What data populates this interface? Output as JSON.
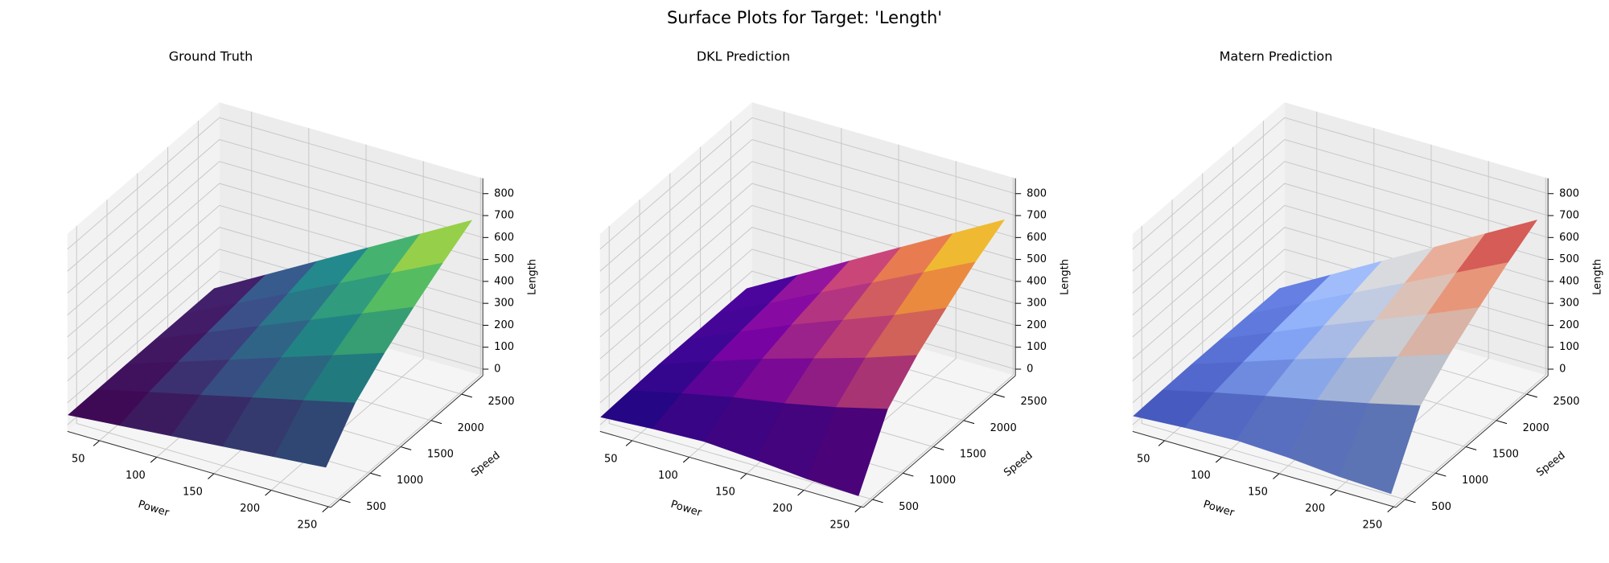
{
  "title": "Surface Plots for Target: 'Length'",
  "chart_data": [
    {
      "type": "surface",
      "title": "Ground Truth",
      "x_label": "Power",
      "y_label": "Speed",
      "z_label": "Length",
      "colormap": "viridis",
      "x": [
        20,
        65,
        110,
        155,
        200,
        245
      ],
      "y": [
        400,
        880,
        1360,
        1840,
        2320,
        2800
      ],
      "z": [
        [
          30,
          50,
          70,
          90,
          110,
          130
        ],
        [
          30,
          86,
          141,
          197,
          252,
          308
        ],
        [
          30,
          108,
          186,
          264,
          342,
          420
        ],
        [
          30,
          127,
          224,
          320,
          417,
          514
        ],
        [
          30,
          144,
          258,
          372,
          486,
          600
        ],
        [
          30,
          160,
          290,
          420,
          550,
          680
        ]
      ],
      "xlim": [
        22,
        252
      ],
      "ylim": [
        350,
        2850
      ],
      "zlim": [
        -30,
        870
      ],
      "xticks": [
        50,
        100,
        150,
        200,
        250
      ],
      "yticks": [
        500,
        1000,
        1500,
        2000,
        2500
      ],
      "zticks": [
        0,
        100,
        200,
        300,
        400,
        500,
        600,
        700,
        800
      ]
    },
    {
      "type": "surface",
      "title": "DKL Prediction",
      "x_label": "Power",
      "y_label": "Speed",
      "z_label": "Length",
      "colormap": "plasma",
      "x": [
        20,
        65,
        110,
        155,
        200,
        245
      ],
      "y": [
        400,
        880,
        1360,
        1840,
        2320,
        2800
      ],
      "z": [
        [
          20,
          35,
          45,
          30,
          10,
          0
        ],
        [
          25,
          80,
          130,
          170,
          220,
          280
        ],
        [
          30,
          110,
          190,
          260,
          330,
          410
        ],
        [
          30,
          130,
          230,
          320,
          410,
          510
        ],
        [
          30,
          145,
          262,
          375,
          490,
          605
        ],
        [
          30,
          160,
          292,
          422,
          552,
          682
        ]
      ],
      "xlim": [
        22,
        252
      ],
      "ylim": [
        350,
        2850
      ],
      "zlim": [
        -30,
        870
      ],
      "xticks": [
        50,
        100,
        150,
        200,
        250
      ],
      "yticks": [
        500,
        1000,
        1500,
        2000,
        2500
      ],
      "zticks": [
        0,
        100,
        200,
        300,
        400,
        500,
        600,
        700,
        800
      ]
    },
    {
      "type": "surface",
      "title": "Matern Prediction",
      "x_label": "Power",
      "y_label": "Speed",
      "z_label": "Length",
      "colormap": "coolwarm",
      "x": [
        20,
        65,
        110,
        155,
        200,
        245
      ],
      "y": [
        400,
        880,
        1360,
        1840,
        2320,
        2800
      ],
      "z": [
        [
          25,
          40,
          50,
          40,
          20,
          10
        ],
        [
          28,
          84,
          136,
          186,
          238,
          295
        ],
        [
          30,
          108,
          188,
          262,
          336,
          415
        ],
        [
          30,
          128,
          226,
          320,
          414,
          512
        ],
        [
          30,
          145,
          260,
          373,
          488,
          602
        ],
        [
          30,
          160,
          291,
          421,
          551,
          681
        ]
      ],
      "xlim": [
        22,
        252
      ],
      "ylim": [
        350,
        2850
      ],
      "zlim": [
        -30,
        870
      ],
      "xticks": [
        50,
        100,
        150,
        200,
        250
      ],
      "yticks": [
        500,
        1000,
        1500,
        2000,
        2500
      ],
      "zticks": [
        0,
        100,
        200,
        300,
        400,
        500,
        600,
        700,
        800
      ]
    }
  ]
}
